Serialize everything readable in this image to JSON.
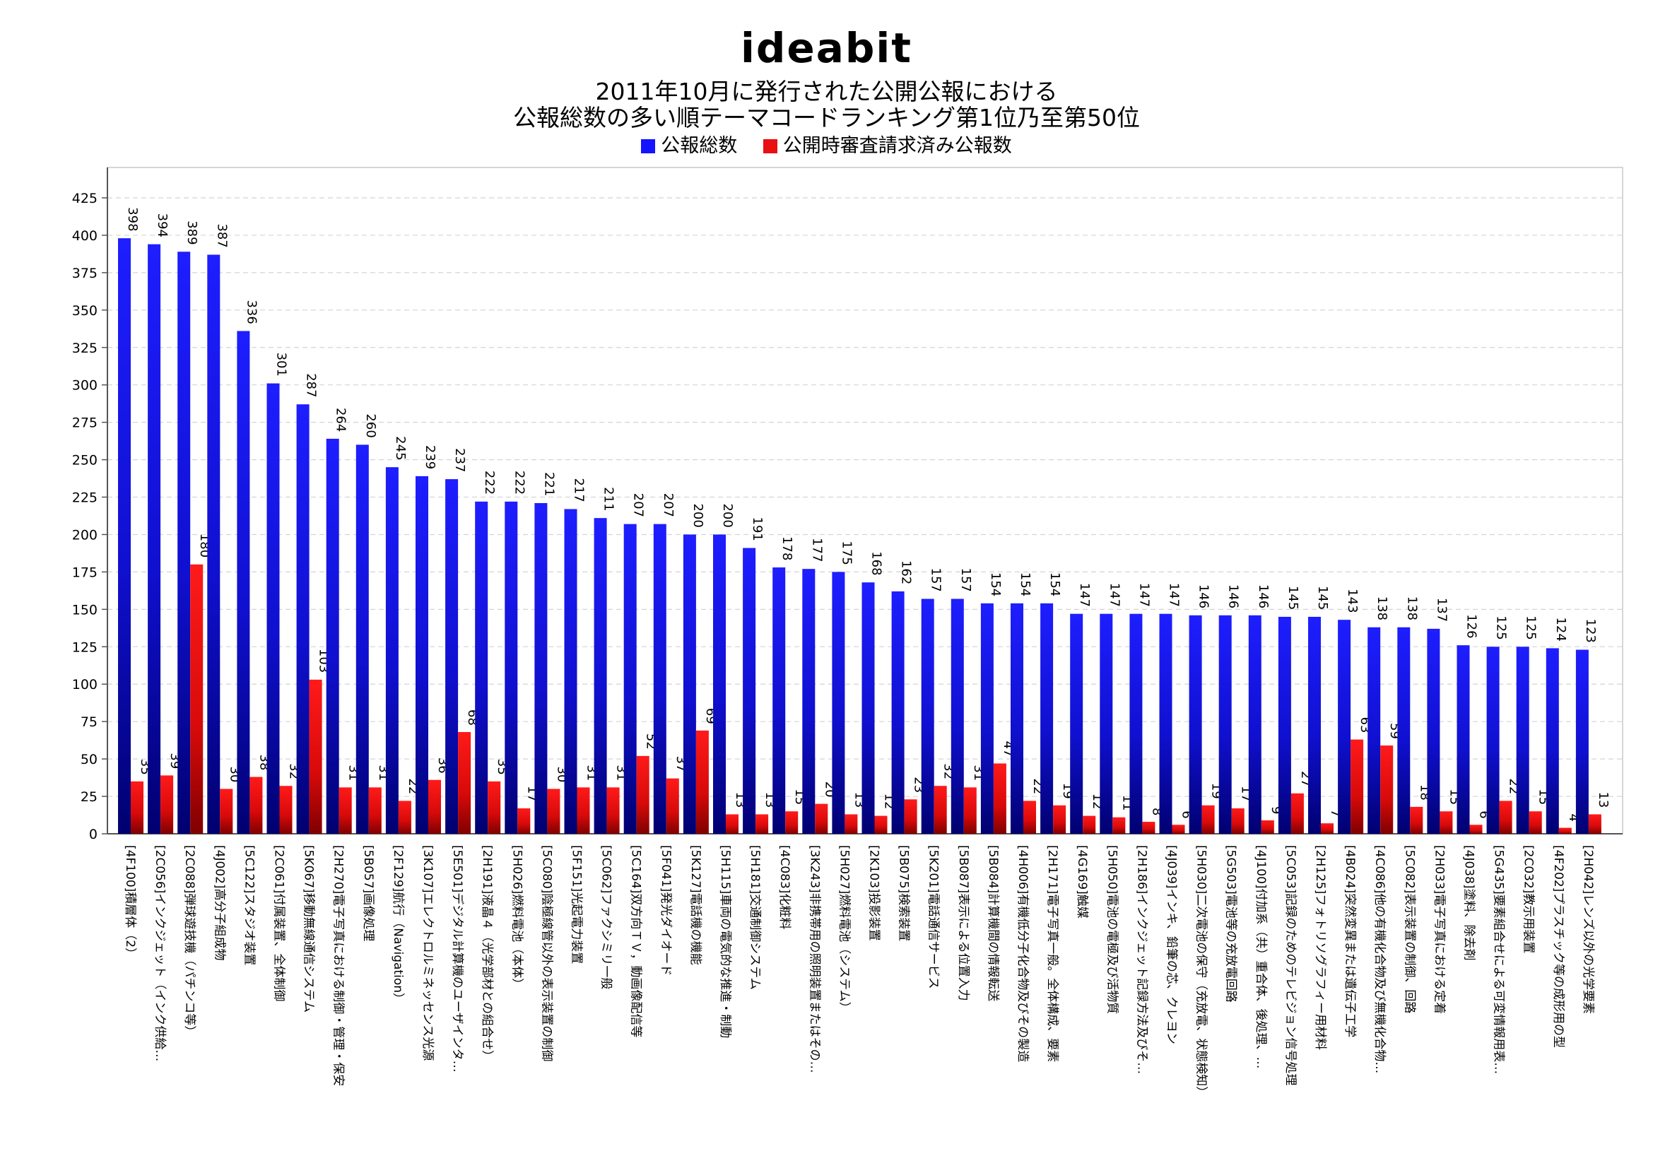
{
  "header": {
    "logo": "ideabit",
    "title_line1": "2011年10月に発行された公開公報における",
    "title_line2": "公報総数の多い順テーマコードランキング第1位乃至第50位"
  },
  "chart_data": {
    "type": "bar",
    "title": "2011年10月に発行された公開公報における 公報総数の多い順テーマコードランキング第1位乃至第50位",
    "xlabel": "",
    "ylabel": "",
    "ylim": [
      0,
      425
    ],
    "y_ticks": [
      0,
      25,
      50,
      75,
      100,
      125,
      150,
      175,
      200,
      225,
      250,
      275,
      300,
      325,
      350,
      375,
      400,
      425
    ],
    "grid": true,
    "legend_position": "top-center",
    "categories": [
      "[4F100]積層体（2）",
      "[2C056]インクジェット（インク供給…",
      "[2C088]弾球遊技機（パチンコ等）",
      "[4J002]高分子組成物",
      "[5C122]スタジオ装置",
      "[2C061]付属装置、全体制御",
      "[5K067]移動無線通信システム",
      "[2H270]電子写真における制御・管理・保安",
      "[5B057]画像処理",
      "[2F129]航行（Navigation）",
      "[3K107]エレクトロルミネッセンス光源",
      "[5E501]デジタル計算機のユーザインタ…",
      "[2H191]液晶４（光学部材との組合せ）",
      "[5H026]燃料電池（本体）",
      "[5C080]陰極線管以外の表示装置の制御",
      "[5F151]光起電力装置",
      "[5C062]ファクシミリ一般",
      "[5C164]双方向ＴＶ，動画像配信等",
      "[5F041]発光ダイオード",
      "[5K127]電話機の機能",
      "[5H115]車両の電気的な推進・制動",
      "[5H181]交通制御システム",
      "[4C083]化粧料",
      "[3K243]非携帯用の照明装置またはその…",
      "[5H027]燃料電池（システム）",
      "[2K103]投影装置",
      "[5B075]検索装置",
      "[5K201]電話通信サービス",
      "[5B087]表示による位置入力",
      "[5B084]計算機間の情報転送",
      "[4H006]有機低分子化合物及びその製造",
      "[2H171]電子写真一般。全体構成、要素",
      "[4G169]触媒",
      "[5H050]電池の電極及び活物質",
      "[2H186]インクジェット記録方法及びそ…",
      "[4J039]インキ、鉛筆の芯、クレヨン",
      "[5H030]二次電池の保守（充放電、状態検知）",
      "[5G503]電池等の充放電回路",
      "[4J100]付加系（共）重合体、後処理、…",
      "[5C053]記録のためのテレビジョン信号処理",
      "[2H125]フォトリソグラフィー用材料",
      "[4B024]突然変異または遺伝子工学",
      "[4C086]他の有機化合物及び無機化合物…",
      "[5C082]表示装置の制御、回路",
      "[2H033]電子写真における定着",
      "[4J038]塗料、除去剤",
      "[5G435]要素組合せによる可変情報用表…",
      "[2C032]教示用装置",
      "[4F202]プラスチック等の成形用の型",
      "[2H042]レンズ以外の光学要素"
    ],
    "series": [
      {
        "name": "公報総数",
        "color": "#1414ff",
        "values": [
          398,
          394,
          389,
          387,
          336,
          301,
          287,
          264,
          260,
          245,
          239,
          237,
          222,
          222,
          221,
          217,
          211,
          207,
          207,
          200,
          200,
          191,
          178,
          177,
          175,
          168,
          162,
          157,
          157,
          154,
          154,
          154,
          147,
          147,
          147,
          147,
          146,
          146,
          146,
          145,
          145,
          143,
          138,
          138,
          137,
          126,
          125,
          125,
          124,
          123
        ]
      },
      {
        "name": "公開時審査請求済み公報数",
        "color": "#e81010",
        "values": [
          35,
          39,
          180,
          30,
          38,
          32,
          103,
          31,
          31,
          22,
          36,
          68,
          35,
          17,
          30,
          31,
          31,
          52,
          37,
          69,
          13,
          13,
          15,
          20,
          13,
          12,
          23,
          32,
          31,
          47,
          22,
          19,
          12,
          11,
          8,
          6,
          19,
          17,
          9,
          27,
          7,
          63,
          59,
          18,
          15,
          6,
          22,
          15,
          4,
          13
        ]
      }
    ]
  }
}
